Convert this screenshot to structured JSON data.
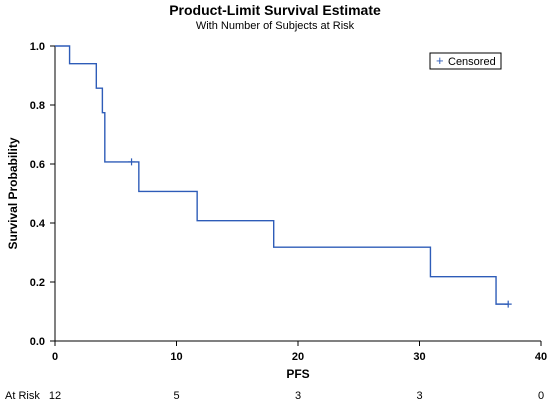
{
  "title": "Product-Limit Survival Estimate",
  "subtitle": "With Number of Subjects at Risk",
  "legend": {
    "label": "Censored",
    "placement": "top-right"
  },
  "at_risk_label": "At Risk",
  "chart_data": {
    "type": "line",
    "step": true,
    "title": "Product-Limit Survival Estimate",
    "subtitle": "With Number of Subjects at Risk",
    "xlabel": "PFS",
    "ylabel": "Survival Probability",
    "xlim": [
      0,
      40
    ],
    "ylim": [
      0,
      1
    ],
    "x_ticks": [
      0,
      10,
      20,
      30,
      40
    ],
    "y_ticks": [
      0.0,
      0.2,
      0.4,
      0.6,
      0.8,
      1.0
    ],
    "x_tick_labels": [
      "0",
      "10",
      "20",
      "30",
      "40"
    ],
    "y_tick_labels": [
      "0.0",
      "0.2",
      "0.4",
      "0.6",
      "0.8",
      "1.0"
    ],
    "grid": false,
    "color": "#2e5cb8",
    "series": [
      {
        "x": [
          0,
          1.2,
          3.4,
          3.9,
          4.1,
          6.9,
          11.7,
          18.0,
          30.9,
          36.3,
          37.3
        ],
        "y": [
          1.0,
          0.94,
          0.857,
          0.774,
          0.607,
          0.507,
          0.408,
          0.318,
          0.218,
          0.125,
          0.125
        ]
      }
    ],
    "censored": [
      {
        "x": 6.3,
        "y": 0.607
      },
      {
        "x": 37.3,
        "y": 0.125
      }
    ],
    "at_risk": [
      {
        "x": 0,
        "n": "12"
      },
      {
        "x": 10,
        "n": "5"
      },
      {
        "x": 20,
        "n": "3"
      },
      {
        "x": 30,
        "n": "3"
      },
      {
        "x": 40,
        "n": "0"
      }
    ]
  }
}
